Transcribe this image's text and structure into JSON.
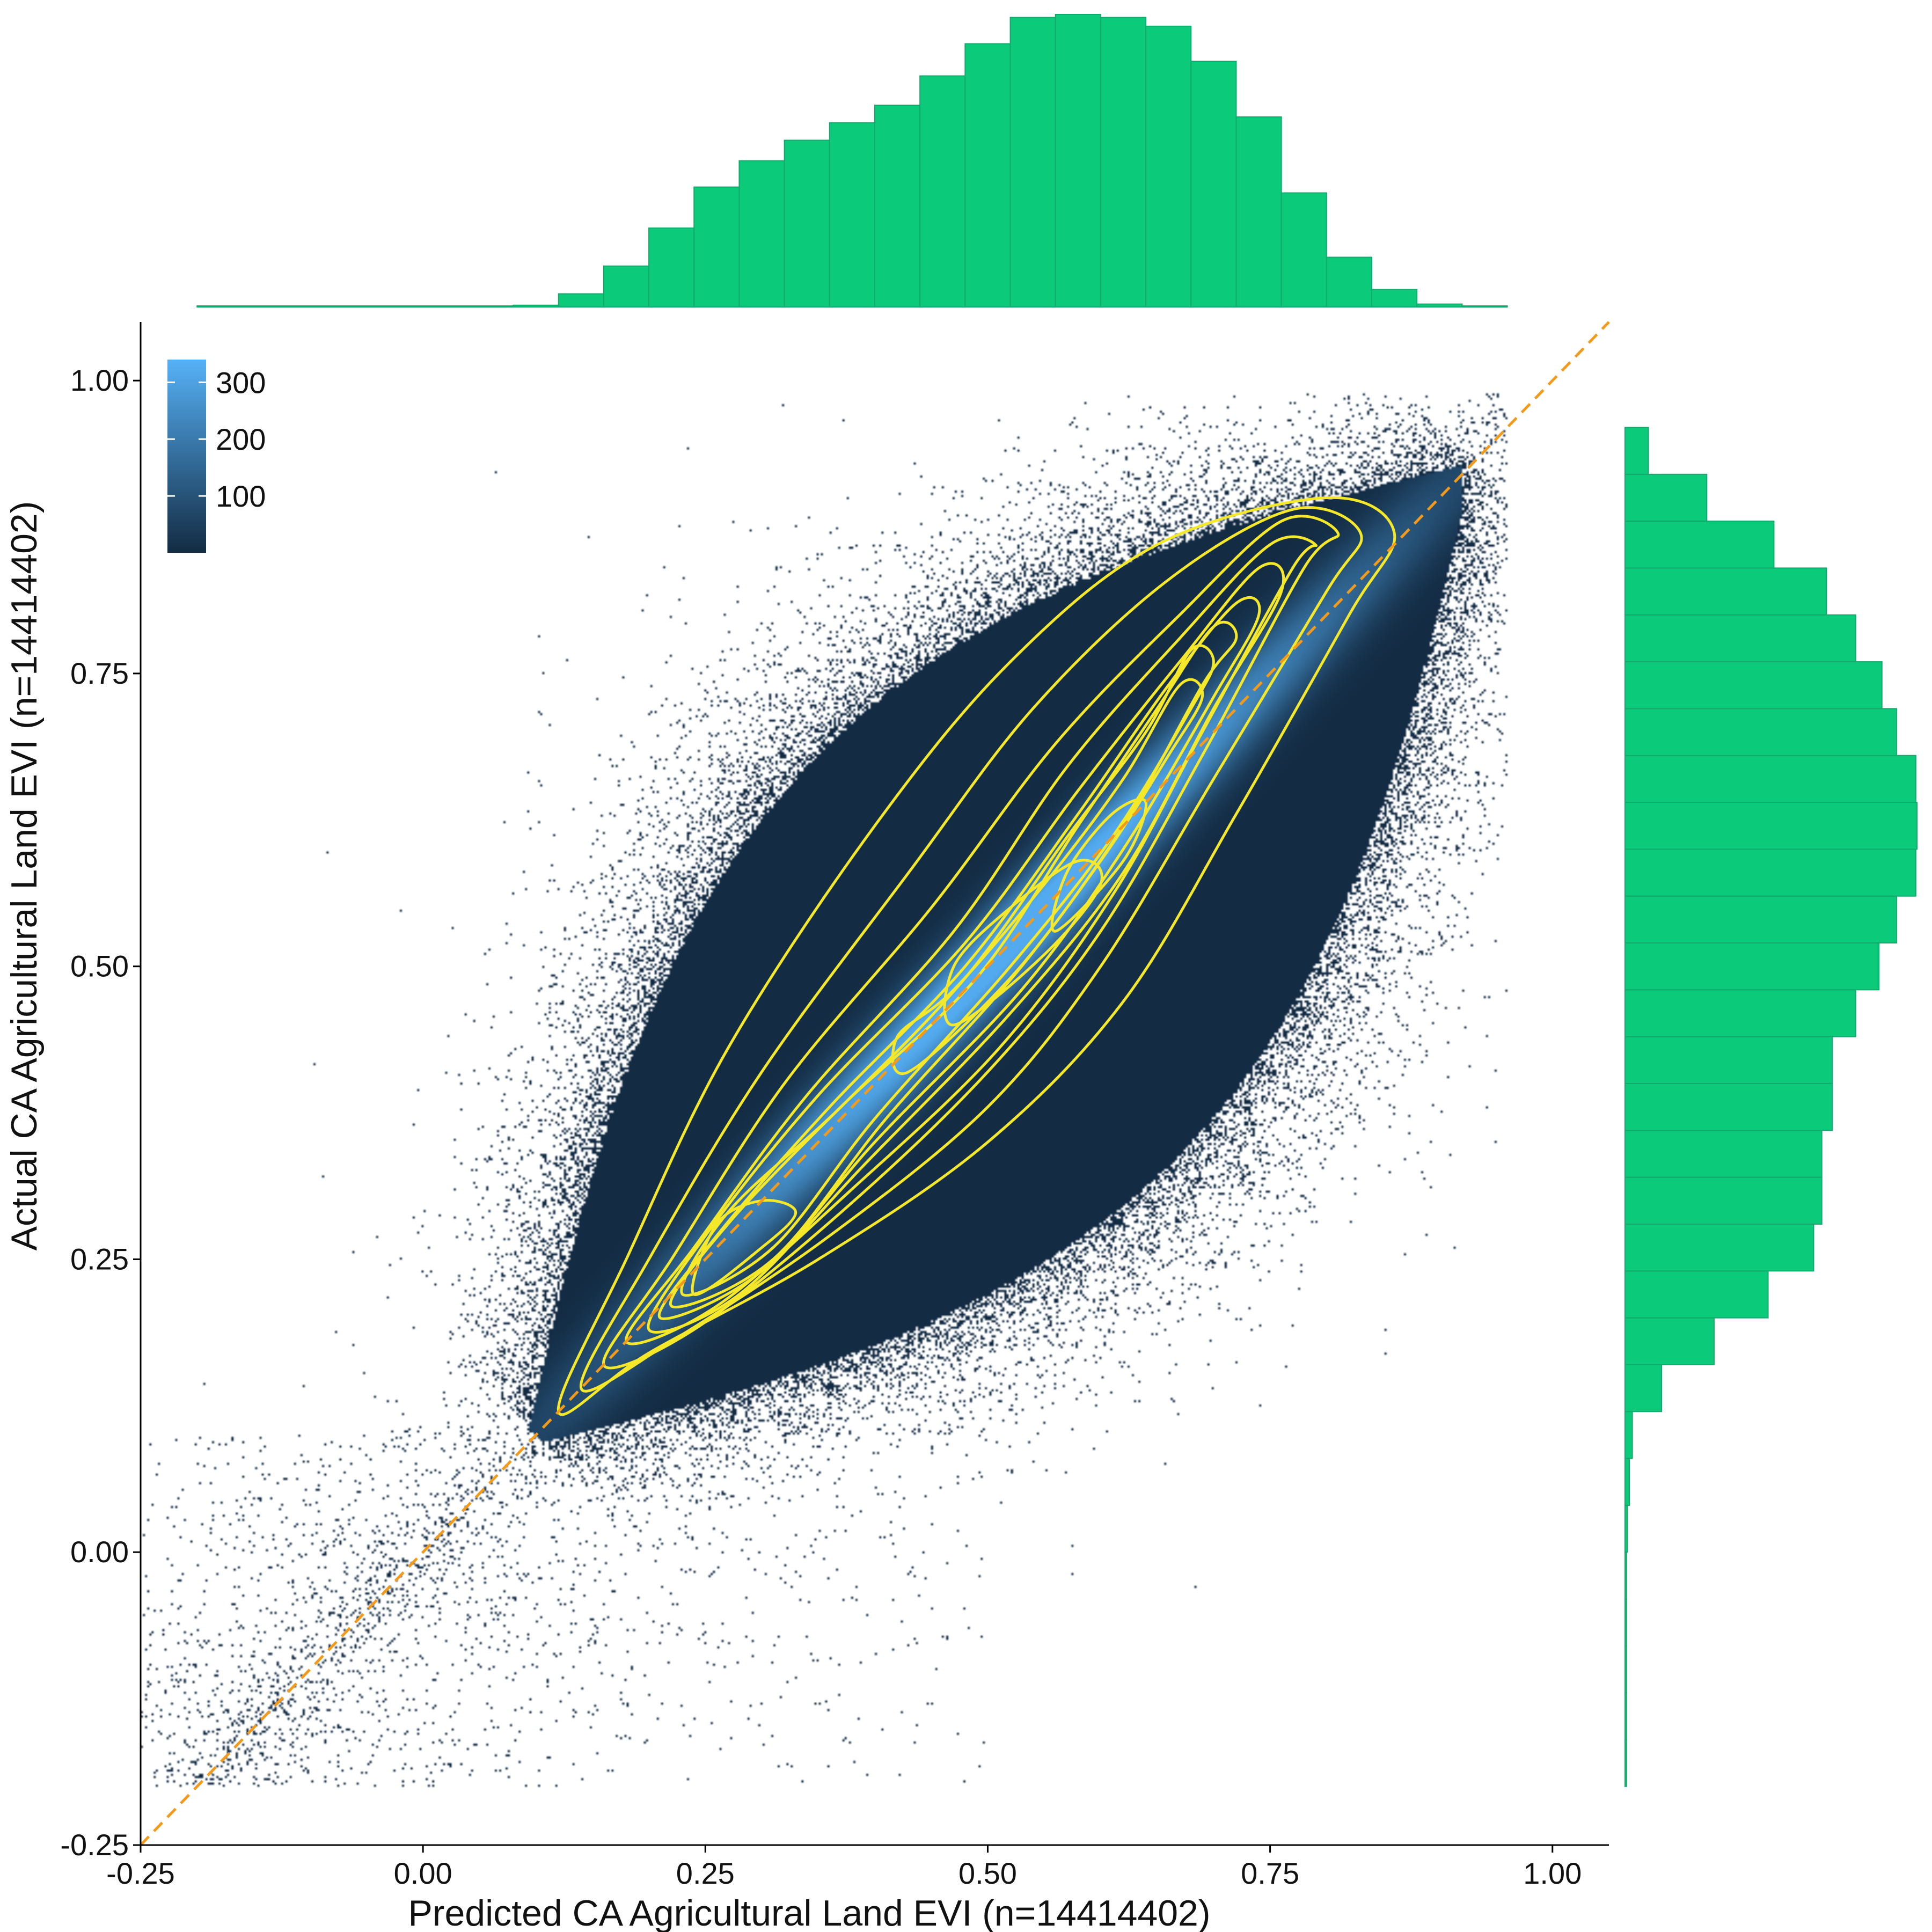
{
  "chart_data": {
    "type": "scatter",
    "subtype": "2D density heatmap with contours and marginal histograms",
    "xlabel": "Predicted CA Agricultural Land EVI  (n=14414402)",
    "ylabel": "Actual CA Agricultural Land EVI  (n=14414402)",
    "xlim": [
      -0.25,
      1.05
    ],
    "ylim": [
      -0.25,
      1.05
    ],
    "x_ticks": [
      -0.25,
      0.0,
      0.25,
      0.5,
      0.75,
      1.0
    ],
    "x_tick_labels": [
      "-0.25",
      "0.00",
      "0.25",
      "0.50",
      "0.75",
      "1.00"
    ],
    "y_ticks": [
      -0.25,
      0.0,
      0.25,
      0.5,
      0.75,
      1.0
    ],
    "y_tick_labels": [
      "-0.25",
      "0.00",
      "0.25",
      "0.50",
      "0.75",
      "1.00"
    ],
    "n": 14414402,
    "grid": false,
    "legend": {
      "title": "",
      "position": "top-left",
      "ticks": [
        100,
        200,
        300
      ],
      "tick_labels": [
        "100",
        "200",
        "300"
      ],
      "range": [
        0,
        340
      ],
      "color_low": "#132b43",
      "color_high": "#56b1f7"
    },
    "reference_line": {
      "slope": 1,
      "intercept": 0,
      "style": "dashed",
      "color": "#f39a1b"
    },
    "contour_color": "#f5e82a",
    "density_core": {
      "mean_x": 0.52,
      "mean_y": 0.52,
      "sd_x": 0.19,
      "sd_y": 0.19,
      "correlation": 0.92
    },
    "contours": [
      {
        "level": 1,
        "points": [
          [
            0.12,
            0.12
          ],
          [
            0.2,
            0.17
          ],
          [
            0.35,
            0.25
          ],
          [
            0.5,
            0.35
          ],
          [
            0.62,
            0.47
          ],
          [
            0.72,
            0.63
          ],
          [
            0.82,
            0.8
          ],
          [
            0.86,
            0.87
          ],
          [
            0.8,
            0.9
          ],
          [
            0.65,
            0.86
          ],
          [
            0.52,
            0.76
          ],
          [
            0.4,
            0.62
          ],
          [
            0.27,
            0.43
          ],
          [
            0.18,
            0.25
          ]
        ]
      },
      {
        "level": 2,
        "points": [
          [
            0.14,
            0.14
          ],
          [
            0.22,
            0.18
          ],
          [
            0.36,
            0.27
          ],
          [
            0.5,
            0.38
          ],
          [
            0.6,
            0.5
          ],
          [
            0.7,
            0.66
          ],
          [
            0.8,
            0.82
          ],
          [
            0.83,
            0.87
          ],
          [
            0.77,
            0.89
          ],
          [
            0.66,
            0.83
          ],
          [
            0.54,
            0.72
          ],
          [
            0.43,
            0.58
          ],
          [
            0.3,
            0.41
          ],
          [
            0.2,
            0.25
          ]
        ]
      },
      {
        "level": 3,
        "points": [
          [
            0.16,
            0.16
          ],
          [
            0.24,
            0.19
          ],
          [
            0.37,
            0.29
          ],
          [
            0.5,
            0.41
          ],
          [
            0.6,
            0.53
          ],
          [
            0.69,
            0.68
          ],
          [
            0.78,
            0.84
          ],
          [
            0.81,
            0.87
          ],
          [
            0.76,
            0.88
          ],
          [
            0.67,
            0.8
          ],
          [
            0.56,
            0.69
          ],
          [
            0.45,
            0.55
          ],
          [
            0.32,
            0.4
          ],
          [
            0.22,
            0.25
          ]
        ]
      },
      {
        "level": 4,
        "points": [
          [
            0.18,
            0.18
          ],
          [
            0.26,
            0.21
          ],
          [
            0.38,
            0.31
          ],
          [
            0.51,
            0.43
          ],
          [
            0.61,
            0.56
          ],
          [
            0.69,
            0.7
          ],
          [
            0.77,
            0.84
          ],
          [
            0.79,
            0.86
          ],
          [
            0.75,
            0.86
          ],
          [
            0.67,
            0.78
          ],
          [
            0.57,
            0.67
          ],
          [
            0.47,
            0.53
          ],
          [
            0.34,
            0.39
          ],
          [
            0.24,
            0.26
          ]
        ]
      },
      {
        "level": 5,
        "points": [
          [
            0.2,
            0.19
          ],
          [
            0.28,
            0.22
          ],
          [
            0.39,
            0.33
          ],
          [
            0.52,
            0.46
          ],
          [
            0.62,
            0.58
          ],
          [
            0.7,
            0.72
          ],
          [
            0.76,
            0.82
          ],
          [
            0.74,
            0.84
          ],
          [
            0.67,
            0.76
          ],
          [
            0.58,
            0.65
          ],
          [
            0.48,
            0.52
          ],
          [
            0.35,
            0.39
          ],
          [
            0.25,
            0.27
          ]
        ]
      },
      {
        "level": 6,
        "points": [
          [
            0.21,
            0.2
          ],
          [
            0.3,
            0.24
          ],
          [
            0.4,
            0.35
          ],
          [
            0.53,
            0.48
          ],
          [
            0.62,
            0.6
          ],
          [
            0.7,
            0.73
          ],
          [
            0.74,
            0.8
          ],
          [
            0.72,
            0.81
          ],
          [
            0.66,
            0.74
          ],
          [
            0.58,
            0.63
          ],
          [
            0.48,
            0.5
          ],
          [
            0.36,
            0.38
          ],
          [
            0.26,
            0.27
          ]
        ]
      },
      {
        "level": 7,
        "points": [
          [
            0.22,
            0.21
          ],
          [
            0.31,
            0.25
          ],
          [
            0.41,
            0.37
          ],
          [
            0.53,
            0.5
          ],
          [
            0.62,
            0.62
          ],
          [
            0.69,
            0.74
          ],
          [
            0.72,
            0.78
          ],
          [
            0.7,
            0.79
          ],
          [
            0.65,
            0.72
          ],
          [
            0.58,
            0.62
          ],
          [
            0.49,
            0.49
          ],
          [
            0.37,
            0.38
          ],
          [
            0.27,
            0.28
          ]
        ]
      },
      {
        "level": 8,
        "points": [
          [
            0.23,
            0.22
          ],
          [
            0.31,
            0.26
          ],
          [
            0.4,
            0.37
          ],
          [
            0.52,
            0.5
          ],
          [
            0.61,
            0.61
          ],
          [
            0.68,
            0.72
          ],
          [
            0.7,
            0.76
          ],
          [
            0.68,
            0.77
          ],
          [
            0.64,
            0.7
          ],
          [
            0.57,
            0.61
          ],
          [
            0.48,
            0.49
          ],
          [
            0.37,
            0.38
          ],
          [
            0.27,
            0.29
          ]
        ]
      },
      {
        "level": 9,
        "points": [
          [
            0.24,
            0.22
          ],
          [
            0.3,
            0.26
          ],
          [
            0.33,
            0.29
          ],
          [
            0.3,
            0.3
          ],
          [
            0.26,
            0.28
          ]
        ]
      },
      {
        "level": 10,
        "points": [
          [
            0.43,
            0.41
          ],
          [
            0.52,
            0.49
          ],
          [
            0.6,
            0.59
          ],
          [
            0.66,
            0.68
          ],
          [
            0.69,
            0.73
          ],
          [
            0.67,
            0.74
          ],
          [
            0.62,
            0.66
          ],
          [
            0.55,
            0.57
          ],
          [
            0.47,
            0.48
          ],
          [
            0.42,
            0.44
          ]
        ]
      },
      {
        "level": 11,
        "points": [
          [
            0.47,
            0.45
          ],
          [
            0.55,
            0.51
          ],
          [
            0.6,
            0.57
          ],
          [
            0.58,
            0.59
          ],
          [
            0.52,
            0.55
          ],
          [
            0.47,
            0.5
          ]
        ]
      },
      {
        "level": 12,
        "points": [
          [
            0.56,
            0.53
          ],
          [
            0.62,
            0.59
          ],
          [
            0.64,
            0.64
          ],
          [
            0.61,
            0.63
          ],
          [
            0.57,
            0.58
          ]
        ]
      }
    ],
    "x_histogram": {
      "bin_width": 0.04,
      "bin_starts": [
        -0.2,
        -0.16,
        -0.12,
        -0.08,
        -0.04,
        0.0,
        0.04,
        0.08,
        0.12,
        0.16,
        0.2,
        0.24,
        0.28,
        0.32,
        0.36,
        0.4,
        0.44,
        0.48,
        0.52,
        0.56,
        0.6,
        0.64,
        0.68,
        0.72,
        0.76,
        0.8,
        0.84,
        0.88,
        0.92
      ],
      "counts": [
        0.001,
        0.001,
        0.001,
        0.001,
        0.001,
        0.001,
        0.002,
        0.006,
        0.045,
        0.14,
        0.27,
        0.41,
        0.5,
        0.57,
        0.63,
        0.69,
        0.79,
        0.9,
        0.99,
        1.0,
        0.99,
        0.96,
        0.84,
        0.65,
        0.39,
        0.17,
        0.06,
        0.01,
        0.002
      ]
    },
    "y_histogram": {
      "bin_width": 0.04,
      "bin_starts": [
        -0.2,
        -0.16,
        -0.12,
        -0.08,
        -0.04,
        0.0,
        0.04,
        0.08,
        0.12,
        0.16,
        0.2,
        0.24,
        0.28,
        0.32,
        0.36,
        0.4,
        0.44,
        0.48,
        0.52,
        0.56,
        0.6,
        0.64,
        0.68,
        0.72,
        0.76,
        0.8,
        0.84,
        0.88,
        0.92
      ],
      "counts": [
        0.005,
        0.005,
        0.005,
        0.005,
        0.005,
        0.008,
        0.015,
        0.025,
        0.125,
        0.305,
        0.49,
        0.646,
        0.674,
        0.674,
        0.71,
        0.71,
        0.79,
        0.87,
        0.93,
        0.996,
        1.0,
        0.996,
        0.93,
        0.88,
        0.79,
        0.69,
        0.51,
        0.28,
        0.08
      ]
    }
  }
}
